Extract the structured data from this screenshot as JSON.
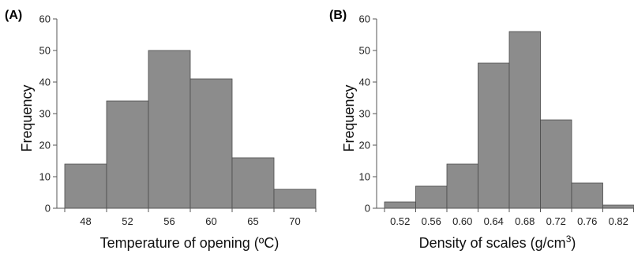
{
  "chart_data": [
    {
      "type": "bar",
      "panel_label": "(A)",
      "categories": [
        "48",
        "52",
        "56",
        "60",
        "65",
        "70"
      ],
      "values": [
        14,
        34,
        50,
        41,
        16,
        6
      ],
      "xlabel": "Temperature of opening (ºC)",
      "ylabel": "Frequency",
      "ylim": [
        0,
        60
      ],
      "yticks": [
        0,
        10,
        20,
        30,
        40,
        50,
        60
      ],
      "grid": false,
      "colors": {
        "bar": "#8c8c8c",
        "edge": "#4a4a4a"
      }
    },
    {
      "type": "bar",
      "panel_label": "(B)",
      "categories": [
        "0.52",
        "0.56",
        "0.60",
        "0.64",
        "0.68",
        "0.72",
        "0.76",
        "0.82"
      ],
      "values": [
        2,
        7,
        14,
        46,
        56,
        28,
        8,
        1
      ],
      "xlabel_main": "Density of scales (g/cm",
      "xlabel_sup": "3",
      "xlabel_end": ")",
      "ylabel": "Frequency",
      "ylim": [
        0,
        60
      ],
      "yticks": [
        0,
        10,
        20,
        30,
        40,
        50,
        60
      ],
      "grid": false,
      "colors": {
        "bar": "#8c8c8c",
        "edge": "#4a4a4a"
      }
    }
  ]
}
